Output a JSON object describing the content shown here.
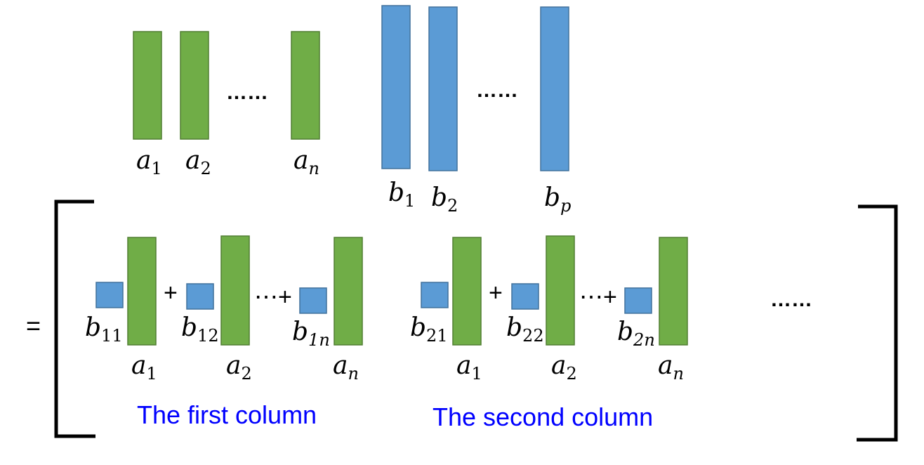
{
  "colors": {
    "a_vector": "#70AD47",
    "a_vector_stroke": "#507E32",
    "b_vector": "#5B9BD5",
    "b_vector_stroke": "#41719C",
    "caption": "#0000FF",
    "bracket": "#000000"
  },
  "top_row": {
    "a_vectors": [
      {
        "base": "a",
        "sub": "1"
      },
      {
        "base": "a",
        "sub": "2"
      },
      {
        "base": "a",
        "sub": "n"
      }
    ],
    "a_ellipsis": "……",
    "b_vectors": [
      {
        "base": "b",
        "sub": "1"
      },
      {
        "base": "b",
        "sub": "2"
      },
      {
        "base": "b",
        "sub": "p"
      }
    ],
    "b_ellipsis": "……"
  },
  "result": {
    "equals": "=",
    "columns": [
      {
        "terms": [
          {
            "coef": {
              "base": "b",
              "sub": "11"
            },
            "vec": {
              "base": "a",
              "sub": "1"
            }
          },
          {
            "coef": {
              "base": "b",
              "sub": "12"
            },
            "vec": {
              "base": "a",
              "sub": "2"
            }
          },
          {
            "coef": {
              "base": "b",
              "sub": "1n"
            },
            "vec": {
              "base": "a",
              "sub": "n"
            }
          }
        ],
        "plus": "+",
        "dots_plus": "⋯+",
        "caption": "The first column"
      },
      {
        "terms": [
          {
            "coef": {
              "base": "b",
              "sub": "21"
            },
            "vec": {
              "base": "a",
              "sub": "1"
            }
          },
          {
            "coef": {
              "base": "b",
              "sub": "22"
            },
            "vec": {
              "base": "a",
              "sub": "2"
            }
          },
          {
            "coef": {
              "base": "b",
              "sub": "2n"
            },
            "vec": {
              "base": "a",
              "sub": "n"
            }
          }
        ],
        "plus": "+",
        "dots_plus": "⋯+",
        "caption": "The second column"
      }
    ],
    "trailing_ellipsis": "……"
  }
}
